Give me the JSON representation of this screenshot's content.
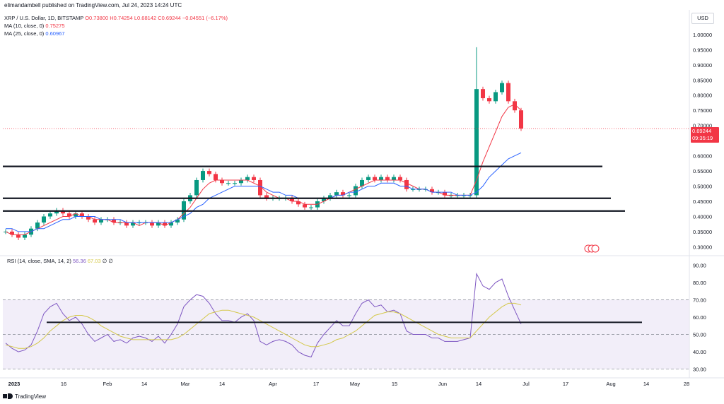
{
  "header": {
    "published": "elimandambell published on TradingView.com, Jul 24, 2023 14:24 UTC"
  },
  "legend": {
    "symbol": "XRP / U.S. Dollar, 1D, BITSTAMP",
    "ohlc": "O0.73800 H0.74254 L0.68142 C0.69244 −0.04551 (−6.17%)",
    "ma10_label": "MA (10, close, 0)",
    "ma10_value": "0.75275",
    "ma25_label": "MA (25, close, 0)",
    "ma25_value": "0.60967",
    "rsi_label": "RSI (14, close, SMA, 14, 2)",
    "rsi_value": "56.36",
    "rsi_ma_value": "67.03",
    "rsi_extra": "∅ ∅"
  },
  "currency": "USD",
  "last_price": {
    "price": "0.69244",
    "countdown": "09:35:19"
  },
  "footer": {
    "brand": "TradingView"
  },
  "colors": {
    "up": "#089981",
    "down": "#f23645",
    "ma10": "#f23645",
    "ma25": "#2962ff",
    "rsi": "#7e57c2",
    "rsi_ma": "#d4c84a",
    "rsi_band": "#ede7f6"
  },
  "chart_data": [
    {
      "type": "candlestick",
      "title": "XRP / U.S. Dollar, 1D, BITSTAMP",
      "ylim": [
        0.28,
        1.03
      ],
      "y_ticks": [
        "1.00000",
        "0.95000",
        "0.90000",
        "0.85000",
        "0.80000",
        "0.75000",
        "0.70000",
        "0.65000",
        "0.60000",
        "0.55000",
        "0.50000",
        "0.45000",
        "0.40000",
        "0.35000",
        "0.30000"
      ],
      "x_ticks": [
        "2023",
        "16",
        "Feb",
        "14",
        "Mar",
        "14",
        "Apr",
        "17",
        "May",
        "15",
        "Jun",
        "14",
        "Jul",
        "17",
        "Aug",
        "14",
        "28"
      ],
      "series": [
        {
          "name": "Price",
          "close": [
            0.35,
            0.34,
            0.33,
            0.34,
            0.36,
            0.38,
            0.4,
            0.41,
            0.42,
            0.41,
            0.4,
            0.41,
            0.4,
            0.39,
            0.38,
            0.39,
            0.39,
            0.38,
            0.38,
            0.37,
            0.38,
            0.38,
            0.38,
            0.37,
            0.38,
            0.37,
            0.38,
            0.39,
            0.45,
            0.47,
            0.52,
            0.55,
            0.54,
            0.52,
            0.51,
            0.51,
            0.51,
            0.52,
            0.53,
            0.52,
            0.47,
            0.46,
            0.46,
            0.46,
            0.46,
            0.45,
            0.44,
            0.43,
            0.43,
            0.45,
            0.46,
            0.47,
            0.48,
            0.47,
            0.47,
            0.5,
            0.52,
            0.53,
            0.52,
            0.53,
            0.52,
            0.53,
            0.52,
            0.49,
            0.49,
            0.49,
            0.49,
            0.48,
            0.48,
            0.47,
            0.47,
            0.47,
            0.47,
            0.47,
            0.82,
            0.79,
            0.78,
            0.81,
            0.84,
            0.78,
            0.75,
            0.69
          ]
        },
        {
          "name": "MA (10, close, 0)",
          "values": [
            0.35,
            0.34,
            0.34,
            0.34,
            0.35,
            0.36,
            0.37,
            0.38,
            0.39,
            0.4,
            0.4,
            0.41,
            0.4,
            0.4,
            0.39,
            0.39,
            0.39,
            0.38,
            0.38,
            0.38,
            0.38,
            0.37,
            0.38,
            0.38,
            0.38,
            0.37,
            0.38,
            0.39,
            0.41,
            0.43,
            0.46,
            0.49,
            0.51,
            0.52,
            0.52,
            0.52,
            0.52,
            0.52,
            0.52,
            0.51,
            0.5,
            0.48,
            0.47,
            0.46,
            0.46,
            0.45,
            0.45,
            0.44,
            0.44,
            0.44,
            0.45,
            0.46,
            0.47,
            0.47,
            0.48,
            0.49,
            0.5,
            0.51,
            0.52,
            0.52,
            0.52,
            0.52,
            0.52,
            0.51,
            0.5,
            0.49,
            0.49,
            0.48,
            0.48,
            0.47,
            0.47,
            0.47,
            0.47,
            0.47,
            0.52,
            0.58,
            0.63,
            0.68,
            0.73,
            0.76,
            0.77,
            0.75
          ]
        },
        {
          "name": "MA (25, close, 0)",
          "values": [
            0.36,
            0.36,
            0.35,
            0.35,
            0.35,
            0.36,
            0.36,
            0.37,
            0.38,
            0.39,
            0.39,
            0.4,
            0.4,
            0.4,
            0.4,
            0.39,
            0.39,
            0.39,
            0.39,
            0.38,
            0.38,
            0.38,
            0.38,
            0.38,
            0.38,
            0.38,
            0.38,
            0.39,
            0.4,
            0.41,
            0.43,
            0.44,
            0.46,
            0.47,
            0.48,
            0.49,
            0.5,
            0.5,
            0.5,
            0.5,
            0.5,
            0.49,
            0.48,
            0.48,
            0.47,
            0.47,
            0.46,
            0.46,
            0.46,
            0.46,
            0.46,
            0.46,
            0.47,
            0.47,
            0.48,
            0.48,
            0.49,
            0.5,
            0.5,
            0.51,
            0.51,
            0.51,
            0.5,
            0.5,
            0.49,
            0.49,
            0.49,
            0.48,
            0.48,
            0.48,
            0.48,
            0.47,
            0.47,
            0.47,
            0.48,
            0.5,
            0.53,
            0.55,
            0.57,
            0.59,
            0.6,
            0.61
          ]
        }
      ],
      "annotations": {
        "horizontal_lines": [
          0.565,
          0.46,
          0.418
        ]
      }
    },
    {
      "type": "line",
      "title": "RSI (14, close, SMA, 14, 2)",
      "ylim": [
        27,
        93
      ],
      "y_ticks": [
        "90.00",
        "80.00",
        "70.00",
        "60.00",
        "50.00",
        "40.00",
        "30.00"
      ],
      "band": [
        30,
        70
      ],
      "series": [
        {
          "name": "RSI",
          "values": [
            45,
            42,
            40,
            41,
            44,
            52,
            62,
            66,
            68,
            62,
            58,
            60,
            56,
            50,
            46,
            48,
            50,
            46,
            47,
            45,
            48,
            49,
            48,
            46,
            49,
            45,
            50,
            56,
            66,
            70,
            73,
            72,
            68,
            62,
            58,
            58,
            57,
            60,
            62,
            58,
            46,
            44,
            46,
            47,
            46,
            44,
            40,
            38,
            37,
            45,
            50,
            54,
            58,
            55,
            55,
            62,
            68,
            70,
            66,
            67,
            63,
            64,
            62,
            52,
            50,
            50,
            50,
            48,
            48,
            46,
            46,
            46,
            47,
            48,
            85,
            78,
            76,
            80,
            82,
            72,
            64,
            56
          ]
        },
        {
          "name": "RSI MA",
          "values": [
            44,
            43,
            42,
            42,
            43,
            45,
            48,
            52,
            55,
            58,
            60,
            61,
            61,
            60,
            58,
            55,
            53,
            51,
            49,
            48,
            47,
            47,
            47,
            47,
            47,
            47,
            47,
            48,
            50,
            53,
            56,
            59,
            62,
            63,
            64,
            64,
            63,
            62,
            61,
            60,
            58,
            56,
            54,
            52,
            50,
            48,
            46,
            44,
            43,
            43,
            44,
            45,
            47,
            48,
            50,
            52,
            55,
            58,
            61,
            62,
            63,
            63,
            62,
            60,
            58,
            56,
            54,
            52,
            50,
            49,
            48,
            48,
            48,
            48,
            52,
            56,
            60,
            63,
            66,
            68,
            68,
            67
          ]
        }
      ],
      "annotations": {
        "horizontal_lines": [
          57
        ]
      }
    }
  ]
}
